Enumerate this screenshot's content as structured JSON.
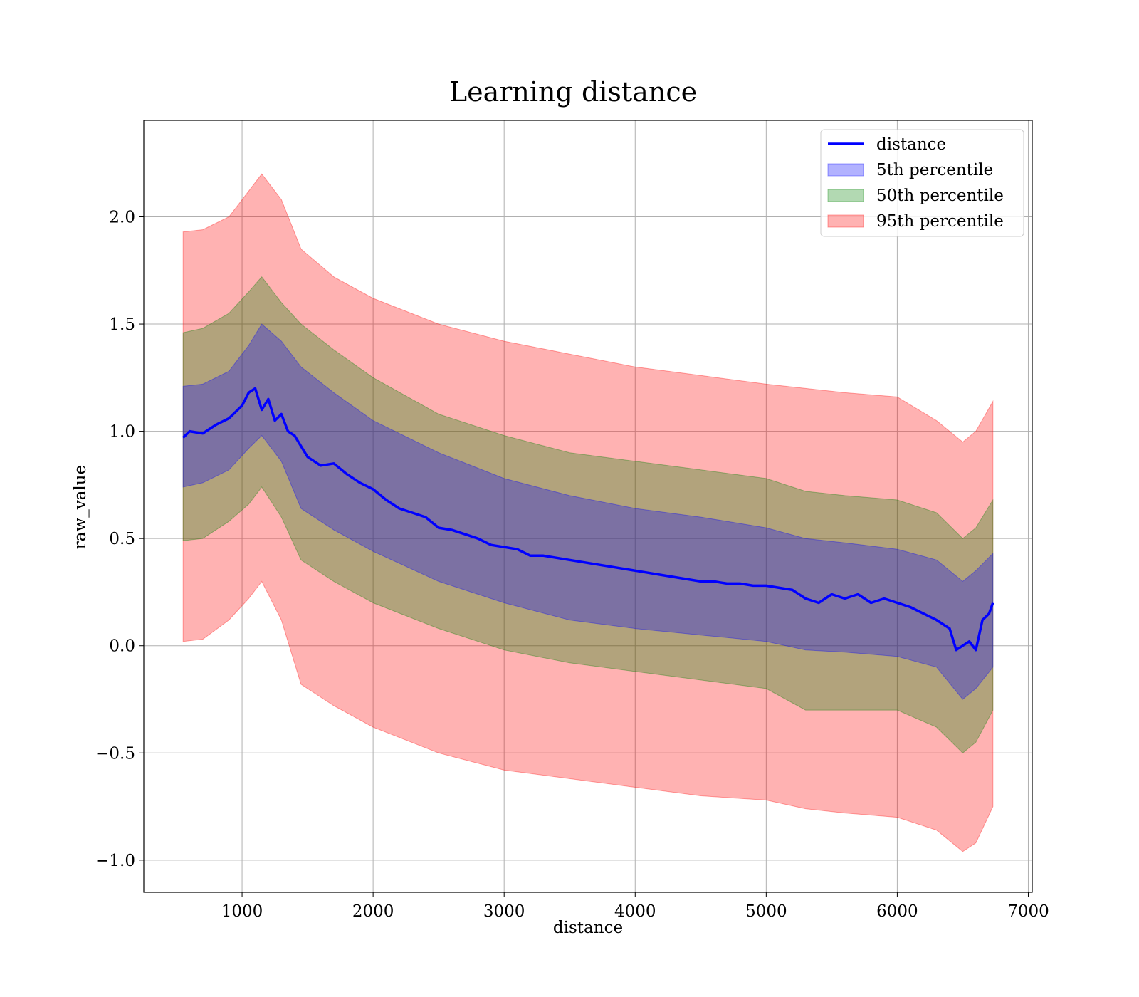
{
  "chart_data": {
    "type": "line",
    "title": "Learning distance",
    "xlabel": "distance",
    "ylabel": "raw_value",
    "xlim": [
      250,
      7030
    ],
    "ylim": [
      -1.15,
      2.45
    ],
    "xticks": [
      1000,
      2000,
      3000,
      4000,
      5000,
      6000,
      7000
    ],
    "xtick_labels": [
      "1000",
      "2000",
      "3000",
      "4000",
      "5000",
      "6000",
      "7000"
    ],
    "yticks": [
      -1.0,
      -0.5,
      0.0,
      0.5,
      1.0,
      1.5,
      2.0
    ],
    "ytick_labels": [
      "−1.0",
      "−0.5",
      "0.0",
      "0.5",
      "1.0",
      "1.5",
      "2.0"
    ],
    "grid": true,
    "legend_position": "top-right",
    "series": [
      {
        "name": "distance",
        "kind": "line",
        "color": "#0000ff",
        "x": [
          550,
          600,
          700,
          800,
          900,
          1000,
          1050,
          1100,
          1150,
          1200,
          1250,
          1300,
          1350,
          1400,
          1500,
          1600,
          1700,
          1800,
          1900,
          2000,
          2100,
          2200,
          2300,
          2400,
          2500,
          2600,
          2700,
          2800,
          2900,
          3000,
          3100,
          3200,
          3300,
          3400,
          3500,
          3600,
          3700,
          3800,
          3900,
          4000,
          4100,
          4200,
          4300,
          4400,
          4500,
          4600,
          4700,
          4800,
          4900,
          5000,
          5100,
          5200,
          5300,
          5400,
          5500,
          5600,
          5700,
          5800,
          5900,
          6000,
          6100,
          6200,
          6300,
          6400,
          6450,
          6500,
          6550,
          6600,
          6650,
          6700,
          6730
        ],
        "y": [
          0.97,
          1.0,
          0.99,
          1.03,
          1.06,
          1.12,
          1.18,
          1.2,
          1.1,
          1.15,
          1.05,
          1.08,
          1.0,
          0.98,
          0.88,
          0.84,
          0.85,
          0.8,
          0.76,
          0.73,
          0.68,
          0.64,
          0.62,
          0.6,
          0.55,
          0.54,
          0.52,
          0.5,
          0.47,
          0.46,
          0.45,
          0.42,
          0.42,
          0.41,
          0.4,
          0.39,
          0.38,
          0.37,
          0.36,
          0.35,
          0.34,
          0.33,
          0.32,
          0.31,
          0.3,
          0.3,
          0.29,
          0.29,
          0.28,
          0.28,
          0.27,
          0.26,
          0.22,
          0.2,
          0.24,
          0.22,
          0.24,
          0.2,
          0.22,
          0.2,
          0.18,
          0.15,
          0.12,
          0.08,
          -0.02,
          0.0,
          0.02,
          -0.02,
          0.12,
          0.15,
          0.2
        ]
      },
      {
        "name": "5th percentile",
        "kind": "band",
        "color": "#0000ff",
        "x": [
          550,
          700,
          900,
          1050,
          1150,
          1300,
          1450,
          1700,
          2000,
          2500,
          3000,
          3500,
          4000,
          4500,
          5000,
          5300,
          5600,
          6000,
          6300,
          6500,
          6600,
          6730
        ],
        "lower": [
          0.74,
          0.76,
          0.82,
          0.92,
          0.98,
          0.86,
          0.64,
          0.54,
          0.44,
          0.3,
          0.2,
          0.12,
          0.08,
          0.05,
          0.02,
          -0.02,
          -0.03,
          -0.05,
          -0.1,
          -0.25,
          -0.2,
          -0.1
        ],
        "upper": [
          1.21,
          1.22,
          1.28,
          1.4,
          1.5,
          1.42,
          1.3,
          1.18,
          1.05,
          0.9,
          0.78,
          0.7,
          0.64,
          0.6,
          0.55,
          0.5,
          0.48,
          0.45,
          0.4,
          0.3,
          0.35,
          0.43
        ]
      },
      {
        "name": "50th percentile",
        "kind": "band",
        "color": "#008000",
        "x": [
          550,
          700,
          900,
          1050,
          1150,
          1300,
          1450,
          1700,
          2000,
          2500,
          3000,
          3500,
          4000,
          4500,
          5000,
          5300,
          5600,
          6000,
          6300,
          6500,
          6600,
          6730
        ],
        "lower": [
          0.49,
          0.5,
          0.58,
          0.66,
          0.74,
          0.6,
          0.4,
          0.3,
          0.2,
          0.08,
          -0.02,
          -0.08,
          -0.12,
          -0.16,
          -0.2,
          -0.3,
          -0.3,
          -0.3,
          -0.38,
          -0.5,
          -0.45,
          -0.3
        ],
        "upper": [
          1.46,
          1.48,
          1.55,
          1.65,
          1.72,
          1.6,
          1.5,
          1.38,
          1.25,
          1.08,
          0.98,
          0.9,
          0.86,
          0.82,
          0.78,
          0.72,
          0.7,
          0.68,
          0.62,
          0.5,
          0.55,
          0.68
        ]
      },
      {
        "name": "95th percentile",
        "kind": "band",
        "color": "#ff0000",
        "x": [
          550,
          700,
          900,
          1050,
          1150,
          1300,
          1450,
          1700,
          2000,
          2500,
          3000,
          3500,
          4000,
          4500,
          5000,
          5300,
          5600,
          6000,
          6300,
          6500,
          6600,
          6730
        ],
        "lower": [
          0.02,
          0.03,
          0.12,
          0.22,
          0.3,
          0.12,
          -0.18,
          -0.28,
          -0.38,
          -0.5,
          -0.58,
          -0.62,
          -0.66,
          -0.7,
          -0.72,
          -0.76,
          -0.78,
          -0.8,
          -0.86,
          -0.96,
          -0.92,
          -0.75
        ],
        "upper": [
          1.93,
          1.94,
          2.0,
          2.12,
          2.2,
          2.08,
          1.85,
          1.72,
          1.62,
          1.5,
          1.42,
          1.36,
          1.3,
          1.26,
          1.22,
          1.2,
          1.18,
          1.16,
          1.05,
          0.95,
          1.0,
          1.14
        ]
      }
    ]
  }
}
